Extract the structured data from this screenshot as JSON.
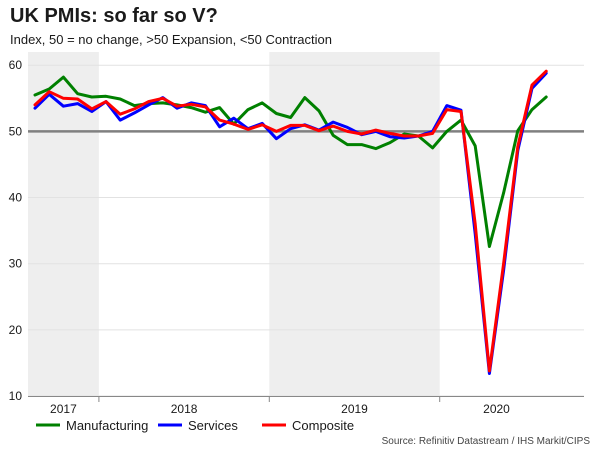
{
  "chart_data": {
    "type": "line",
    "title": "UK PMIs: so far so V?",
    "subtitle": "Index, 50 = no change, >50 Expansion, <50 Contraction",
    "source": "Source: Refinitiv Datastream / IHS Markit/CIPS",
    "ylim": [
      10,
      62
    ],
    "yticks": [
      10,
      20,
      30,
      40,
      50,
      60
    ],
    "reference_line": 50,
    "x_start": "2017-08",
    "year_labels": [
      {
        "label": "2017",
        "month_index": 2
      },
      {
        "label": "2018",
        "month_index": 10.5
      },
      {
        "label": "2019",
        "month_index": 22.5
      },
      {
        "label": "2020",
        "month_index": 32.5
      }
    ],
    "shaded_ranges": [
      [
        -0.5,
        4.5
      ],
      [
        16.5,
        28.5
      ]
    ],
    "series": [
      {
        "name": "Manufacturing",
        "color": "#008000",
        "values": [
          55.5,
          56.4,
          58.2,
          55.7,
          55.2,
          55.3,
          54.9,
          53.9,
          54.2,
          54.3,
          54.0,
          53.6,
          52.9,
          53.6,
          51.1,
          53.3,
          54.3,
          52.7,
          52.1,
          55.1,
          53.1,
          49.4,
          48.0,
          48.0,
          47.4,
          48.3,
          49.6,
          49.3,
          47.5,
          50.0,
          51.7,
          47.8,
          32.6,
          40.7,
          50.1,
          53.3,
          55.2
        ]
      },
      {
        "name": "Services",
        "color": "#0000ff",
        "values": [
          53.5,
          55.6,
          53.8,
          54.2,
          53.0,
          54.5,
          51.7,
          52.8,
          54.0,
          55.1,
          53.5,
          54.3,
          53.9,
          50.7,
          52.0,
          50.4,
          51.2,
          48.9,
          50.4,
          51.0,
          50.2,
          51.4,
          50.6,
          49.5,
          50.0,
          49.2,
          49.0,
          49.3,
          50.0,
          53.9,
          53.2,
          34.5,
          13.4,
          29.0,
          47.1,
          56.5,
          58.8
        ]
      },
      {
        "name": "Composite",
        "color": "#ff0000",
        "values": [
          54.0,
          56.0,
          55.0,
          54.9,
          53.4,
          54.5,
          52.6,
          53.4,
          54.5,
          55.0,
          53.8,
          54.1,
          53.7,
          51.7,
          51.1,
          50.3,
          51.0,
          50.0,
          50.9,
          50.9,
          50.1,
          50.8,
          50.0,
          49.6,
          50.2,
          49.7,
          49.3,
          49.3,
          49.7,
          53.3,
          53.0,
          36.0,
          13.8,
          30.0,
          47.7,
          57.0,
          59.1
        ]
      }
    ]
  }
}
